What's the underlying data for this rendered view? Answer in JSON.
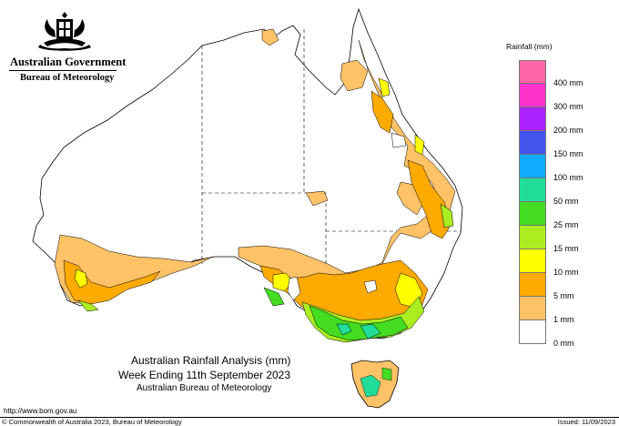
{
  "header": {
    "government": "Australian Government",
    "bureau": "Bureau of Meteorology"
  },
  "title": {
    "line1": "Australian Rainfall Analysis (mm)",
    "line2": "Week Ending 11th September 2023",
    "line3": "Australian Bureau of Meteorology"
  },
  "footer": {
    "url": "http://www.bom.gov.au",
    "copyright": "© Commonwealth of Australia 2023, Bureau of Meteorology",
    "issued": "Issued: 11/09/2023"
  },
  "legend": {
    "title": "Rainfall (mm)",
    "items": [
      {
        "label": "",
        "color": "#ff66a8"
      },
      {
        "label": "400 mm",
        "color": "#ff33cc"
      },
      {
        "label": "300 mm",
        "color": "#aa22ff"
      },
      {
        "label": "200 mm",
        "color": "#4455ee"
      },
      {
        "label": "150 mm",
        "color": "#11aaff"
      },
      {
        "label": "100 mm",
        "color": "#22dd99"
      },
      {
        "label": "50 mm",
        "color": "#44dd22"
      },
      {
        "label": "25 mm",
        "color": "#aaee22"
      },
      {
        "label": "15 mm",
        "color": "#ffff00"
      },
      {
        "label": "10 mm",
        "color": "#ffaa00"
      },
      {
        "label": "5 mm",
        "color": "#ffc266"
      },
      {
        "label": "1 mm",
        "color": "#ffffff"
      },
      {
        "label": "0 mm",
        "color": "#ffffff"
      }
    ]
  },
  "colors": {
    "r1": "#ffc266",
    "r5": "#ffaa00",
    "r10": "#ffff00",
    "r15": "#aaee22",
    "r25": "#44dd22",
    "r50": "#22dd99"
  }
}
